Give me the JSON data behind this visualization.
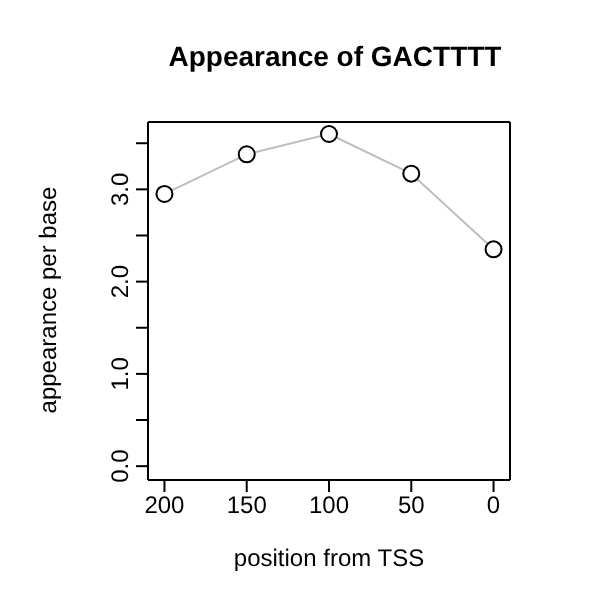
{
  "chart_data": {
    "type": "line",
    "title": "Appearance of GACTTTT",
    "xlabel": "position from TSS",
    "ylabel": "appearance per base",
    "x": [
      200,
      150,
      100,
      50,
      0
    ],
    "series": [
      {
        "color": "#bebebe",
        "values": [
          2.95,
          3.38,
          3.6,
          3.17,
          2.35
        ]
      }
    ],
    "xlim": [
      210,
      -10
    ],
    "xticks": [
      200,
      150,
      100,
      50,
      0
    ],
    "ylim": [
      -0.15,
      3.73
    ],
    "yticks": [
      {
        "value": 0,
        "label": "0.0"
      },
      {
        "value": 0.5,
        "label": null
      },
      {
        "value": 1,
        "label": "1.0"
      },
      {
        "value": 1.5,
        "label": null
      },
      {
        "value": 2,
        "label": "2.0"
      },
      {
        "value": 2.5,
        "label": null
      },
      {
        "value": 3,
        "label": "3.0"
      },
      {
        "value": 3.5,
        "label": null
      }
    ],
    "marker": "circle",
    "line_style": "solid",
    "grid": false,
    "legend": false
  }
}
